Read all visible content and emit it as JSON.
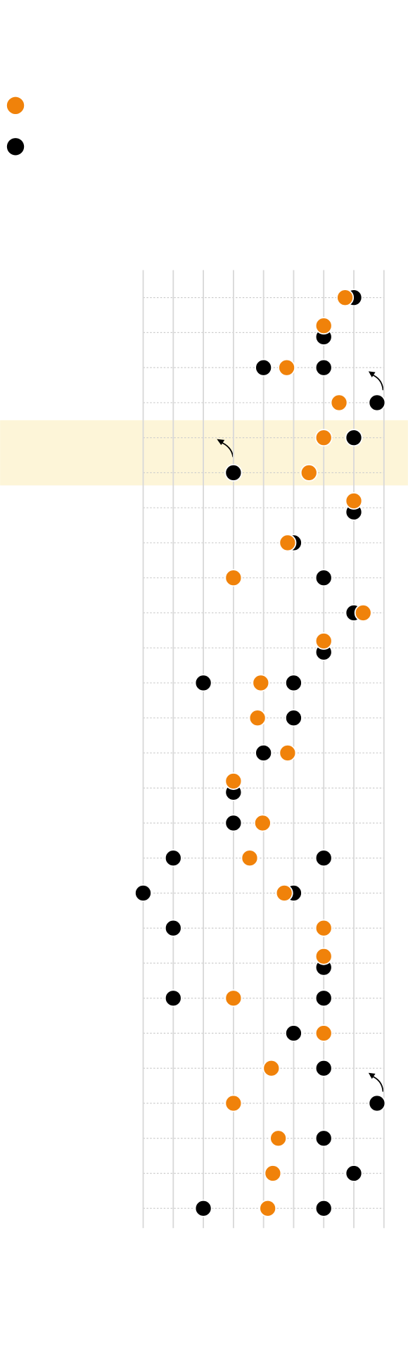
{
  "chart_data": {
    "type": "dot",
    "categories": [
      null,
      null,
      null,
      null,
      null,
      null,
      null,
      null,
      null,
      null,
      null,
      null,
      null,
      null,
      null,
      null,
      null,
      null,
      null,
      null,
      null,
      null,
      null,
      null,
      null,
      null,
      null
    ],
    "series": [
      {
        "color": "#f0820a",
        "values": [
          6.71,
          6,
          4.77,
          6.51,
          6,
          5.51,
          7,
          4.8,
          3,
          7.31,
          6,
          3.91,
          3.8,
          4.8,
          3,
          3.97,
          3.54,
          4.69,
          6,
          6,
          3,
          6,
          4.26,
          3,
          4.49,
          4.31,
          4.14
        ]
      },
      {
        "color": "#000000",
        "values": [
          7,
          6,
          4,
          7.77,
          7,
          3,
          7,
          5,
          6,
          7,
          6,
          2,
          5,
          4,
          3,
          3,
          1,
          0,
          1,
          6,
          1,
          5,
          6,
          7.77,
          6,
          7,
          2
        ]
      },
      {
        "color": "#000000",
        "values": [
          null,
          null,
          6,
          null,
          null,
          null,
          null,
          null,
          null,
          null,
          null,
          5,
          null,
          null,
          null,
          null,
          6,
          5,
          6,
          null,
          6,
          null,
          null,
          null,
          null,
          null,
          6
        ]
      }
    ],
    "xlim": [
      0,
      8
    ],
    "xticks": [
      0,
      1,
      2,
      3,
      4,
      5,
      6,
      7,
      8
    ],
    "grid": true
  }
}
